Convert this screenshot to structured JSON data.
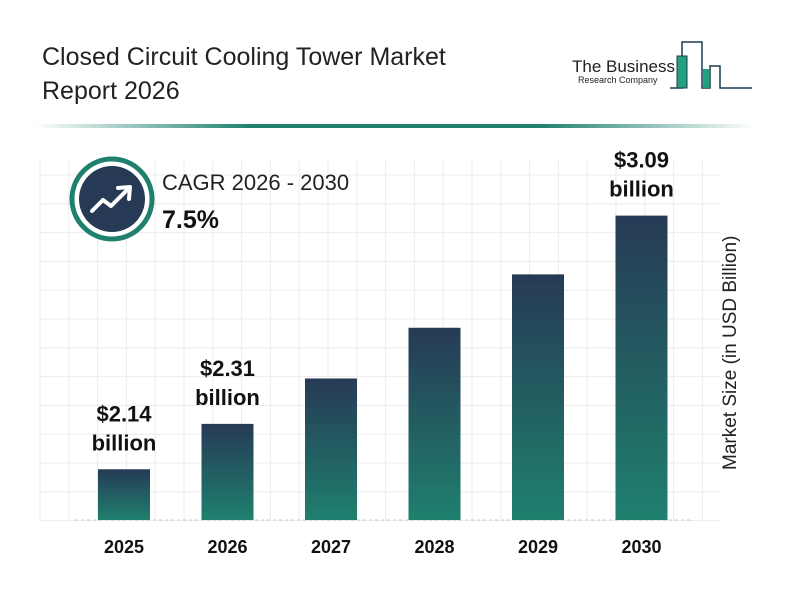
{
  "title": "Closed Circuit Cooling Tower Market Report 2026",
  "logo": {
    "line1": "The Business",
    "line2": "Research Company"
  },
  "cagr": {
    "label": "CAGR 2026 - 2030",
    "value": "7.5%",
    "icon": "trending-up-icon"
  },
  "colors": {
    "bar_top": "#263a55",
    "bar_bottom": "#1f806e",
    "accent": "#1f806e"
  },
  "chart_data": {
    "type": "bar",
    "categories": [
      "2025",
      "2026",
      "2027",
      "2028",
      "2029",
      "2030"
    ],
    "values": [
      2.14,
      2.31,
      2.48,
      2.67,
      2.87,
      3.09
    ],
    "data_labels": [
      {
        "index": 0,
        "line1": "$2.14",
        "line2": "billion"
      },
      {
        "index": 1,
        "line1": "$2.31",
        "line2": "billion"
      },
      {
        "index": 5,
        "line1": "$3.09",
        "line2": "billion"
      }
    ],
    "title": "",
    "xlabel": "",
    "ylabel": "Market Size (in USD Billion)",
    "grid": true
  }
}
